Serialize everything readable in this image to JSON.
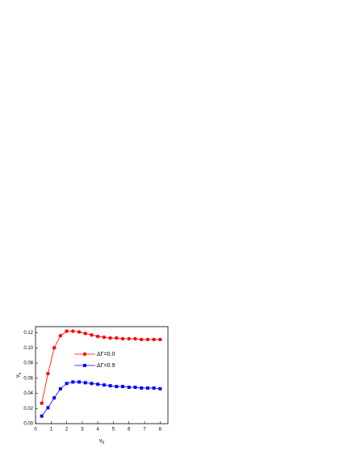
{
  "chart_data": {
    "type": "line",
    "x_label": "v",
    "x_label_sub": "0",
    "y_label": "v",
    "y_label_sub": "s",
    "x": [
      0.4,
      0.8,
      1.2,
      1.6,
      2.0,
      2.4,
      2.8,
      3.2,
      3.6,
      4.0,
      4.4,
      4.8,
      5.2,
      5.6,
      6.0,
      6.4,
      6.8,
      7.2,
      7.6,
      8.0
    ],
    "series": [
      {
        "name": "ΔΓ=0.0",
        "color": "#ff0000",
        "marker": "circle",
        "values": [
          0.027,
          0.066,
          0.1,
          0.116,
          0.122,
          0.122,
          0.121,
          0.119,
          0.117,
          0.115,
          0.114,
          0.113,
          0.113,
          0.112,
          0.112,
          0.112,
          0.111,
          0.111,
          0.111,
          0.111
        ]
      },
      {
        "name": "ΔΓ=0.9",
        "color": "#0000ff",
        "marker": "square",
        "values": [
          0.01,
          0.021,
          0.034,
          0.046,
          0.053,
          0.055,
          0.055,
          0.054,
          0.053,
          0.052,
          0.051,
          0.05,
          0.049,
          0.049,
          0.048,
          0.048,
          0.047,
          0.047,
          0.047,
          0.046
        ]
      }
    ],
    "xlim": [
      0,
      8.5
    ],
    "xticks": [
      0,
      1,
      2,
      3,
      4,
      5,
      6,
      7,
      8
    ],
    "ylim": [
      0,
      0.128
    ],
    "yticks": [
      {
        "value": 0,
        "label": "0.00"
      },
      {
        "value": 0.02,
        "label": "0.02"
      },
      {
        "value": 0.04,
        "label": "0.04"
      },
      {
        "value": 0.06,
        "label": "0.06"
      },
      {
        "value": 0.08,
        "label": "0.08"
      },
      {
        "value": 0.1,
        "label": "0.10"
      },
      {
        "value": 0.12,
        "label": "0.12"
      }
    ]
  }
}
